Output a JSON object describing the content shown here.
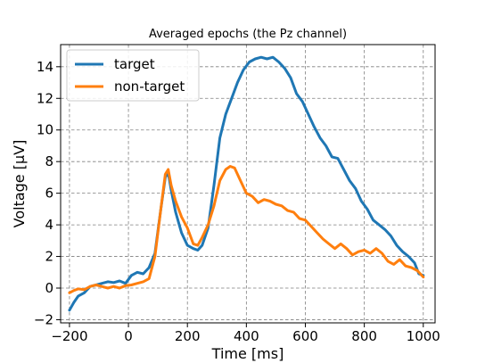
{
  "chart_data": {
    "type": "line",
    "title": "Averaged epochs (the Pz channel)",
    "xlabel": "Time [ms]",
    "ylabel": "Voltage [µV]",
    "xlim": [
      -230,
      1040
    ],
    "ylim": [
      -2.2,
      15.4
    ],
    "xticks": [
      -200,
      0,
      200,
      400,
      600,
      800,
      1000
    ],
    "xtick_labels": [
      "−200",
      "0",
      "200",
      "400",
      "600",
      "800",
      "1000"
    ],
    "yticks": [
      -2,
      0,
      2,
      4,
      6,
      8,
      10,
      12,
      14
    ],
    "ytick_labels": [
      "−2",
      "0",
      "2",
      "4",
      "6",
      "8",
      "10",
      "12",
      "14"
    ],
    "grid": true,
    "legend_position": "top-left",
    "series": [
      {
        "name": "target",
        "color": "#1f77b4",
        "x": [
          -200,
          -185,
          -170,
          -150,
          -130,
          -110,
          -90,
          -70,
          -50,
          -30,
          -10,
          10,
          30,
          50,
          70,
          90,
          110,
          125,
          135,
          145,
          160,
          180,
          200,
          220,
          235,
          250,
          270,
          290,
          310,
          330,
          350,
          370,
          390,
          410,
          430,
          450,
          470,
          490,
          510,
          530,
          550,
          570,
          590,
          610,
          630,
          650,
          670,
          690,
          710,
          730,
          750,
          770,
          790,
          810,
          830,
          850,
          870,
          890,
          910,
          930,
          950,
          970,
          985,
          1000
        ],
        "values": [
          -1.4,
          -0.9,
          -0.5,
          -0.3,
          0.1,
          0.2,
          0.3,
          0.4,
          0.35,
          0.45,
          0.3,
          0.8,
          1.0,
          0.9,
          1.3,
          2.2,
          5.0,
          7.0,
          7.3,
          6.2,
          4.8,
          3.5,
          2.7,
          2.5,
          2.4,
          2.7,
          3.8,
          6.5,
          9.5,
          11.0,
          12.0,
          13.0,
          13.8,
          14.3,
          14.5,
          14.6,
          14.5,
          14.6,
          14.3,
          13.9,
          13.3,
          12.3,
          11.8,
          11.0,
          10.2,
          9.5,
          9.0,
          8.3,
          8.2,
          7.5,
          6.8,
          6.3,
          5.5,
          5.0,
          4.3,
          4.0,
          3.7,
          3.3,
          2.7,
          2.3,
          2.0,
          1.6,
          0.9,
          0.8
        ]
      },
      {
        "name": "non-target",
        "color": "#ff7f0e",
        "x": [
          -200,
          -185,
          -170,
          -150,
          -130,
          -110,
          -90,
          -70,
          -50,
          -30,
          -10,
          10,
          30,
          50,
          70,
          90,
          110,
          125,
          135,
          145,
          160,
          180,
          200,
          220,
          235,
          250,
          270,
          290,
          310,
          330,
          345,
          360,
          380,
          400,
          420,
          440,
          460,
          480,
          500,
          520,
          540,
          560,
          580,
          600,
          620,
          640,
          660,
          680,
          700,
          720,
          740,
          760,
          780,
          800,
          820,
          840,
          860,
          880,
          900,
          920,
          940,
          960,
          980,
          1000
        ],
        "values": [
          -0.3,
          -0.15,
          -0.05,
          -0.1,
          0.1,
          0.2,
          0.1,
          0.0,
          0.1,
          0.0,
          0.15,
          0.2,
          0.3,
          0.4,
          0.6,
          2.0,
          5.0,
          7.2,
          7.5,
          6.5,
          5.5,
          4.5,
          3.8,
          2.8,
          2.7,
          3.2,
          4.0,
          5.2,
          6.8,
          7.5,
          7.7,
          7.6,
          6.8,
          6.0,
          5.8,
          5.4,
          5.6,
          5.5,
          5.3,
          5.2,
          4.9,
          4.8,
          4.4,
          4.3,
          3.9,
          3.5,
          3.1,
          2.8,
          2.5,
          2.8,
          2.5,
          2.1,
          2.3,
          2.4,
          2.2,
          2.5,
          2.2,
          1.7,
          1.5,
          1.8,
          1.4,
          1.3,
          1.1,
          0.7
        ]
      }
    ]
  }
}
